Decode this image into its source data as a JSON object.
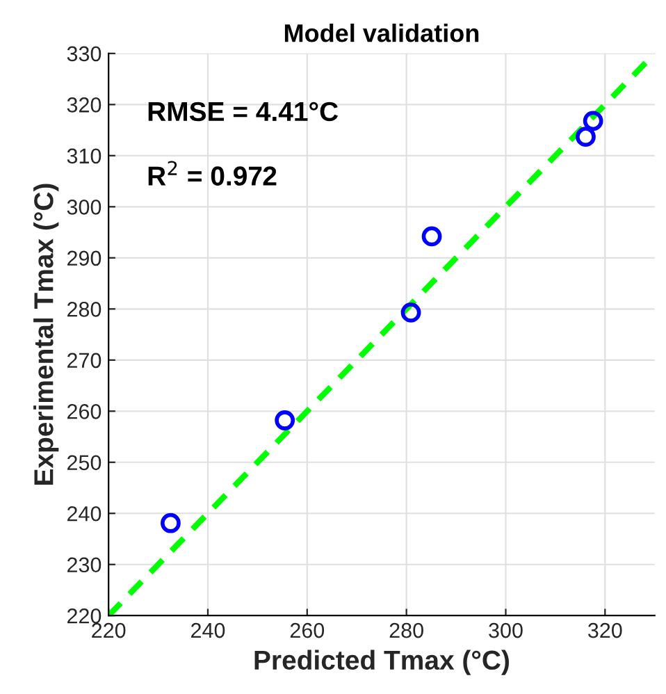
{
  "chart_data": {
    "type": "scatter",
    "title": "Model validation",
    "xlabel": "Predicted Tmax (°C)",
    "ylabel": "Experimental Tmax (°C)",
    "xlim": [
      220,
      330
    ],
    "ylim": [
      220,
      330
    ],
    "xticks": [
      220,
      240,
      260,
      280,
      300,
      320
    ],
    "yticks": [
      220,
      230,
      240,
      250,
      260,
      270,
      280,
      290,
      300,
      310,
      320,
      330
    ],
    "grid": true,
    "marker": "circle",
    "series": [
      {
        "color": "#0000ff",
        "x": [
          232.5,
          255.5,
          280.9,
          285.1,
          316.1,
          317.6
        ],
        "values": [
          238.1,
          258.2,
          279.3,
          294.2,
          313.7,
          316.8
        ]
      },
      {
        "type": "line",
        "color": "#00ff00",
        "line_style": "dashed",
        "marker": "none",
        "x": [
          220,
          330
        ],
        "values": [
          220,
          330
        ]
      }
    ],
    "annotations": [
      "RMSE = 4.41°C",
      "R$^{2}$ = 0.972"
    ]
  }
}
